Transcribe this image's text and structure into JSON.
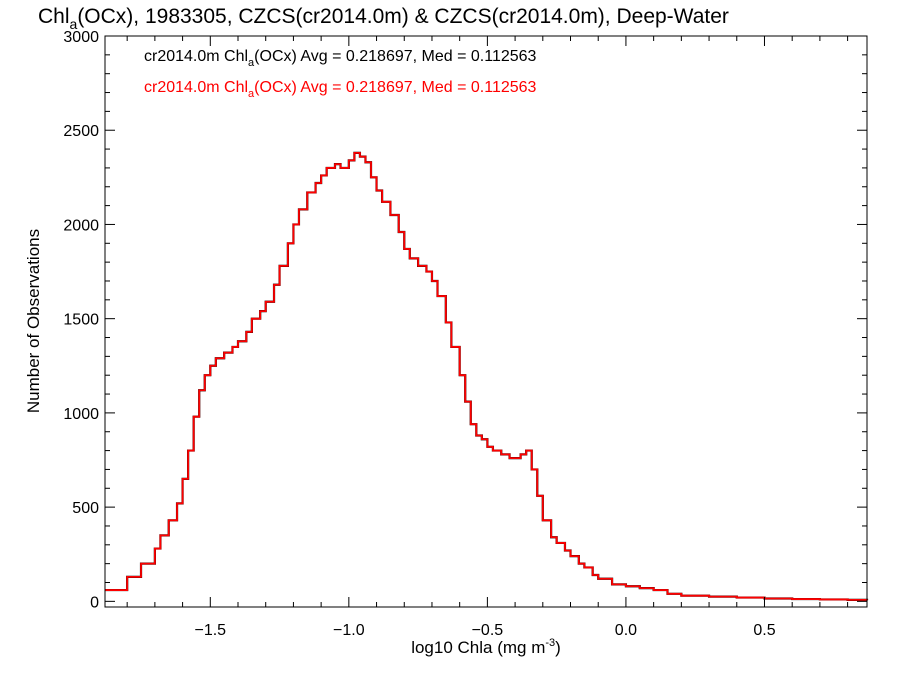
{
  "chart_data": {
    "type": "line",
    "title": {
      "pre": "Chl",
      "sub": "a",
      "post": "(OCx), 1983305, CZCS(cr2014.0m) & CZCS(cr2014.0m), Deep-Water"
    },
    "xlabel": {
      "pre": "log10 Chla (mg m",
      "sup": "-3",
      "post": ")"
    },
    "ylabel": "Number of Observations",
    "xlim": [
      -1.88,
      0.87
    ],
    "ylim": [
      -30,
      3000
    ],
    "x_ticks": [
      {
        "value": -1.5,
        "label": "−1.5"
      },
      {
        "value": -1.0,
        "label": "−1.0"
      },
      {
        "value": -0.5,
        "label": "−0.5"
      },
      {
        "value": 0.0,
        "label": "0.0"
      },
      {
        "value": 0.5,
        "label": "0.5"
      }
    ],
    "y_ticks": [
      {
        "value": 0,
        "label": "0"
      },
      {
        "value": 500,
        "label": "500"
      },
      {
        "value": 1000,
        "label": "1000"
      },
      {
        "value": 1500,
        "label": "1500"
      },
      {
        "value": 2000,
        "label": "2000"
      },
      {
        "value": 2500,
        "label": "2500"
      },
      {
        "value": 3000,
        "label": "3000"
      }
    ],
    "grid": false,
    "annotations": [
      {
        "pre": "cr2014.0m Chl",
        "sub": "a",
        "post": "(OCx) Avg = 0.218697, Med = 0.112563",
        "color": "#000000"
      },
      {
        "pre": "cr2014.0m Chl",
        "sub": "a",
        "post": "(OCx) Avg = 0.218697, Med = 0.112563",
        "color": "#ff0000"
      }
    ],
    "series": [
      {
        "color": "#000000",
        "style": "step",
        "x": [
          -1.88,
          -1.8,
          -1.75,
          -1.7,
          -1.68,
          -1.65,
          -1.62,
          -1.6,
          -1.58,
          -1.56,
          -1.54,
          -1.52,
          -1.5,
          -1.48,
          -1.45,
          -1.42,
          -1.4,
          -1.37,
          -1.35,
          -1.32,
          -1.3,
          -1.27,
          -1.25,
          -1.22,
          -1.2,
          -1.18,
          -1.15,
          -1.12,
          -1.1,
          -1.08,
          -1.05,
          -1.03,
          -1.0,
          -0.98,
          -0.96,
          -0.94,
          -0.92,
          -0.9,
          -0.88,
          -0.85,
          -0.82,
          -0.8,
          -0.78,
          -0.75,
          -0.72,
          -0.7,
          -0.68,
          -0.65,
          -0.63,
          -0.6,
          -0.58,
          -0.56,
          -0.54,
          -0.52,
          -0.5,
          -0.48,
          -0.45,
          -0.42,
          -0.4,
          -0.38,
          -0.36,
          -0.34,
          -0.32,
          -0.3,
          -0.27,
          -0.25,
          -0.22,
          -0.2,
          -0.17,
          -0.15,
          -0.12,
          -0.1,
          -0.05,
          0.0,
          0.05,
          0.1,
          0.15,
          0.2,
          0.3,
          0.4,
          0.5,
          0.6,
          0.7,
          0.8,
          0.87
        ],
        "y": [
          60,
          130,
          200,
          280,
          350,
          430,
          520,
          650,
          800,
          980,
          1120,
          1200,
          1250,
          1290,
          1320,
          1350,
          1380,
          1430,
          1500,
          1540,
          1590,
          1680,
          1780,
          1900,
          2000,
          2080,
          2170,
          2220,
          2260,
          2300,
          2320,
          2300,
          2340,
          2380,
          2360,
          2330,
          2250,
          2180,
          2120,
          2050,
          1960,
          1870,
          1820,
          1780,
          1750,
          1700,
          1620,
          1480,
          1350,
          1200,
          1060,
          940,
          880,
          860,
          820,
          800,
          780,
          760,
          760,
          780,
          800,
          700,
          560,
          430,
          340,
          310,
          270,
          240,
          200,
          180,
          140,
          120,
          90,
          80,
          70,
          60,
          40,
          30,
          25,
          20,
          15,
          12,
          10,
          8,
          6
        ]
      },
      {
        "color": "#ff0000",
        "style": "step",
        "x": [
          -1.88,
          -1.8,
          -1.75,
          -1.7,
          -1.68,
          -1.65,
          -1.62,
          -1.6,
          -1.58,
          -1.56,
          -1.54,
          -1.52,
          -1.5,
          -1.48,
          -1.45,
          -1.42,
          -1.4,
          -1.37,
          -1.35,
          -1.32,
          -1.3,
          -1.27,
          -1.25,
          -1.22,
          -1.2,
          -1.18,
          -1.15,
          -1.12,
          -1.1,
          -1.08,
          -1.05,
          -1.03,
          -1.0,
          -0.98,
          -0.96,
          -0.94,
          -0.92,
          -0.9,
          -0.88,
          -0.85,
          -0.82,
          -0.8,
          -0.78,
          -0.75,
          -0.72,
          -0.7,
          -0.68,
          -0.65,
          -0.63,
          -0.6,
          -0.58,
          -0.56,
          -0.54,
          -0.52,
          -0.5,
          -0.48,
          -0.45,
          -0.42,
          -0.4,
          -0.38,
          -0.36,
          -0.34,
          -0.32,
          -0.3,
          -0.27,
          -0.25,
          -0.22,
          -0.2,
          -0.17,
          -0.15,
          -0.12,
          -0.1,
          -0.05,
          0.0,
          0.05,
          0.1,
          0.15,
          0.2,
          0.3,
          0.4,
          0.5,
          0.6,
          0.7,
          0.8,
          0.87
        ],
        "y": [
          60,
          130,
          200,
          280,
          350,
          430,
          520,
          650,
          800,
          980,
          1120,
          1200,
          1250,
          1290,
          1320,
          1350,
          1380,
          1430,
          1500,
          1540,
          1590,
          1680,
          1780,
          1900,
          2000,
          2080,
          2170,
          2220,
          2260,
          2300,
          2320,
          2300,
          2340,
          2380,
          2360,
          2330,
          2250,
          2180,
          2120,
          2050,
          1960,
          1870,
          1820,
          1780,
          1750,
          1700,
          1620,
          1480,
          1350,
          1200,
          1060,
          940,
          880,
          860,
          820,
          800,
          780,
          760,
          760,
          780,
          800,
          700,
          560,
          430,
          340,
          310,
          270,
          240,
          200,
          180,
          140,
          120,
          90,
          80,
          70,
          60,
          40,
          30,
          25,
          20,
          15,
          12,
          10,
          8,
          6
        ]
      }
    ]
  }
}
